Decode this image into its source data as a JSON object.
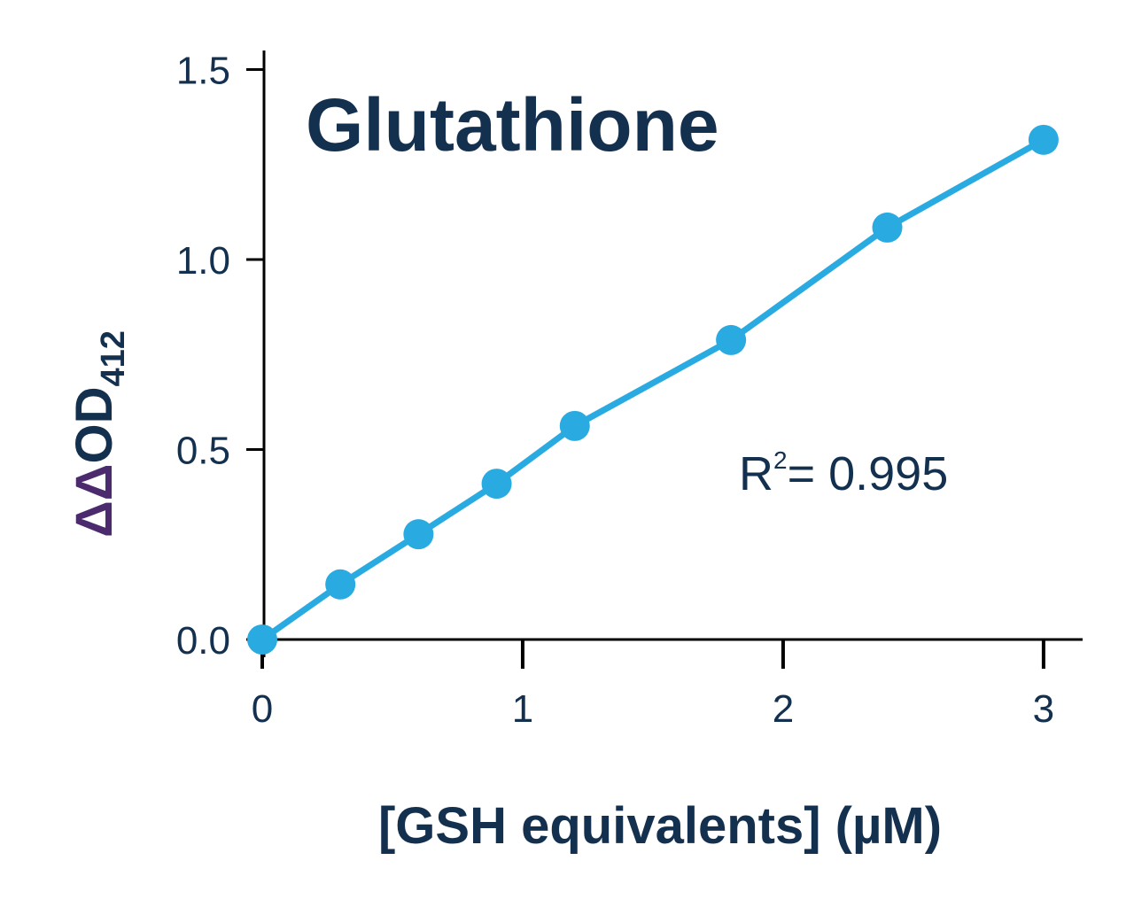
{
  "chart_data": {
    "type": "line",
    "title": "Glutathione",
    "x_label": "[GSH equivalents] (µM)",
    "y_label": {
      "delta": "ΔΔ",
      "main": "OD",
      "sub": "412"
    },
    "annotation": {
      "base": "R",
      "sup": "2",
      "rest": "= 0.995"
    },
    "series": [
      {
        "color": "#29abe2",
        "x": [
          0,
          0.3,
          0.6,
          0.9,
          1.2,
          1.8,
          2.4,
          3.0
        ],
        "values": [
          0.0,
          0.145,
          0.277,
          0.41,
          0.562,
          0.788,
          1.084,
          1.315
        ]
      }
    ],
    "xlim": [
      0,
      3.15
    ],
    "xticks": [
      0,
      1,
      2,
      3
    ],
    "ylim": [
      0,
      1.55
    ],
    "yticks": [
      {
        "value": 0,
        "label": "0.0"
      },
      {
        "value": 0.5,
        "label": "0.5"
      },
      {
        "value": 1.0,
        "label": "1.0"
      },
      {
        "value": 1.5,
        "label": "1.5"
      }
    ],
    "grid": false
  }
}
